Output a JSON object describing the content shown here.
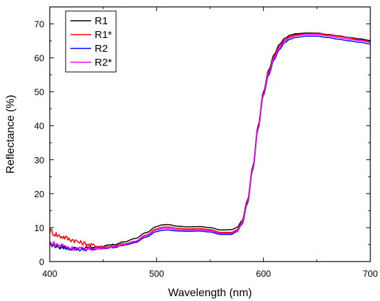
{
  "chart_data": {
    "type": "line",
    "xlabel": "Wavelength (nm)",
    "ylabel": "Reflectance (%)",
    "xlim": [
      400,
      700
    ],
    "ylim": [
      0,
      75
    ],
    "x_ticks": [
      400,
      500,
      600,
      700
    ],
    "x_tick_labels": [
      "400",
      "500",
      "600",
      "700"
    ],
    "y_ticks": [
      0,
      10,
      20,
      30,
      40,
      50,
      60,
      70
    ],
    "y_tick_labels": [
      "0",
      "10",
      "20",
      "30",
      "40",
      "50",
      "60",
      "70"
    ],
    "grid": false,
    "legend_position": "top-left",
    "series": [
      {
        "name": "R1",
        "color": "#000000",
        "noise": 0.7,
        "x": [
          400,
          410,
          420,
          430,
          440,
          450,
          460,
          470,
          480,
          490,
          500,
          505,
          510,
          520,
          530,
          540,
          550,
          560,
          570,
          575,
          580,
          585,
          590,
          595,
          600,
          605,
          610,
          615,
          620,
          625,
          630,
          640,
          650,
          660,
          670,
          680,
          690,
          700
        ],
        "y": [
          5.0,
          4.2,
          3.9,
          4.0,
          4.2,
          4.5,
          5.0,
          5.8,
          6.8,
          8.5,
          10.3,
          10.8,
          10.9,
          10.4,
          10.2,
          10.3,
          10.0,
          9.3,
          9.4,
          10.0,
          12.0,
          18.0,
          28.0,
          40.0,
          50.0,
          56.5,
          61.0,
          64.0,
          65.8,
          66.7,
          67.1,
          67.3,
          67.3,
          66.9,
          66.5,
          66.0,
          65.6,
          65.1
        ]
      },
      {
        "name": "R1*",
        "color": "#ff0000",
        "noise": 1.1,
        "x": [
          400,
          410,
          420,
          430,
          440,
          450,
          460,
          470,
          480,
          490,
          500,
          505,
          510,
          520,
          530,
          540,
          550,
          560,
          570,
          575,
          580,
          585,
          590,
          595,
          600,
          605,
          610,
          615,
          620,
          625,
          630,
          640,
          650,
          660,
          670,
          680,
          690,
          700
        ],
        "y": [
          9.0,
          7.5,
          6.5,
          5.5,
          4.8,
          4.3,
          4.6,
          5.2,
          6.0,
          7.8,
          9.6,
          10.1,
          10.2,
          9.8,
          9.6,
          9.7,
          9.4,
          8.6,
          8.6,
          9.3,
          11.5,
          17.5,
          27.5,
          39.5,
          49.5,
          56.0,
          60.5,
          63.5,
          65.3,
          66.3,
          66.8,
          67.1,
          67.2,
          66.8,
          66.4,
          65.9,
          65.3,
          64.9
        ]
      },
      {
        "name": "R2",
        "color": "#0000ff",
        "noise": 0.8,
        "x": [
          400,
          410,
          420,
          430,
          440,
          450,
          460,
          470,
          480,
          490,
          500,
          505,
          510,
          520,
          530,
          540,
          550,
          560,
          570,
          575,
          580,
          585,
          590,
          595,
          600,
          605,
          610,
          615,
          620,
          625,
          630,
          640,
          650,
          660,
          670,
          680,
          690,
          700
        ],
        "y": [
          5.0,
          4.5,
          3.8,
          3.5,
          3.6,
          3.9,
          4.2,
          4.8,
          5.6,
          7.2,
          8.8,
          9.2,
          9.3,
          9.0,
          8.9,
          9.0,
          8.7,
          8.0,
          8.0,
          8.8,
          11.0,
          17.0,
          27.0,
          39.0,
          49.0,
          55.0,
          59.5,
          62.5,
          64.5,
          65.5,
          66.0,
          66.4,
          66.4,
          66.0,
          65.5,
          65.0,
          64.6,
          64.1
        ]
      },
      {
        "name": "R2*",
        "color": "#ff00ff",
        "noise": 0.9,
        "x": [
          400,
          410,
          420,
          430,
          440,
          450,
          460,
          470,
          480,
          490,
          500,
          505,
          510,
          520,
          530,
          540,
          550,
          560,
          570,
          575,
          580,
          585,
          590,
          595,
          600,
          605,
          610,
          615,
          620,
          625,
          630,
          640,
          650,
          660,
          670,
          680,
          690,
          700
        ],
        "y": [
          5.5,
          4.8,
          4.0,
          3.8,
          3.7,
          4.0,
          4.4,
          5.0,
          5.9,
          7.6,
          9.3,
          9.7,
          9.8,
          9.4,
          9.3,
          9.4,
          9.1,
          8.3,
          8.3,
          9.0,
          11.3,
          17.3,
          27.3,
          39.3,
          49.3,
          55.5,
          60.0,
          63.0,
          65.0,
          66.0,
          66.5,
          66.9,
          66.9,
          66.5,
          66.0,
          65.5,
          65.1,
          64.6
        ]
      }
    ]
  }
}
